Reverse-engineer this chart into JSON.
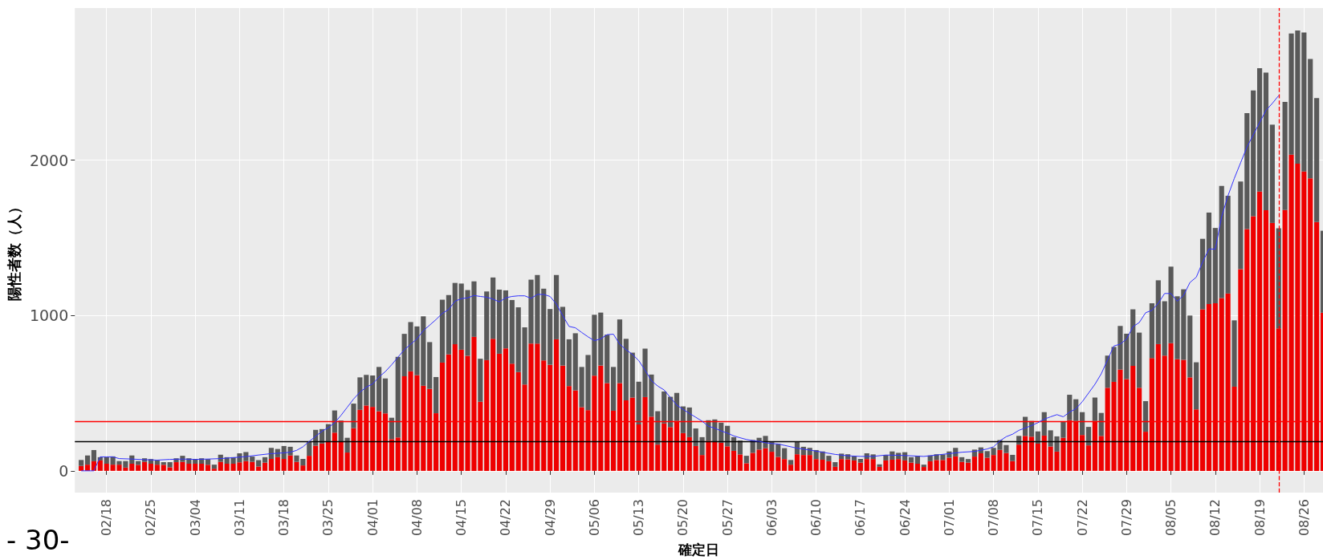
{
  "chart_data": {
    "type": "bar",
    "xlabel": "確定日",
    "ylabel": "陽性者数（人）",
    "annotations": [
      "- 30-"
    ],
    "stacked": true,
    "grid": true,
    "x": [
      "--02-14",
      "--02-15",
      "--02-16",
      "--02-17",
      "--02-18",
      "--02-19",
      "--02-20",
      "--02-21",
      "--02-22",
      "--02-23",
      "--02-24",
      "--02-25",
      "--02-26",
      "--02-27",
      "--02-28",
      "--03-01",
      "--03-02",
      "--03-03",
      "--03-04",
      "--03-05",
      "--03-06",
      "--03-07",
      "--03-08",
      "--03-09",
      "--03-10",
      "--03-11",
      "--03-12",
      "--03-13",
      "--03-14",
      "--03-15",
      "--03-16",
      "--03-17",
      "--03-18",
      "--03-19",
      "--03-20",
      "--03-21",
      "--03-22",
      "--03-23",
      "--03-24",
      "--03-25",
      "--03-26",
      "--03-27",
      "--03-28",
      "--03-29",
      "--03-30",
      "--03-31",
      "--04-01",
      "--04-02",
      "--04-03",
      "--04-04",
      "--04-05",
      "--04-06",
      "--04-07",
      "--04-08",
      "--04-09",
      "--04-10",
      "--04-11",
      "--04-12",
      "--04-13",
      "--04-14",
      "--04-15",
      "--04-16",
      "--04-17",
      "--04-18",
      "--04-19",
      "--04-20",
      "--04-21",
      "--04-22",
      "--04-23",
      "--04-24",
      "--04-25",
      "--04-26",
      "--04-27",
      "--04-28",
      "--04-29",
      "--04-30",
      "--05-01",
      "--05-02",
      "--05-03",
      "--05-04",
      "--05-05",
      "--05-06",
      "--05-07",
      "--05-08",
      "--05-09",
      "--05-10",
      "--05-11",
      "--05-12",
      "--05-13",
      "--05-14",
      "--05-15",
      "--05-16",
      "--05-17",
      "--05-18",
      "--05-19",
      "--05-20",
      "--05-21",
      "--05-22",
      "--05-23",
      "--05-24",
      "--05-25",
      "--05-26",
      "--05-27",
      "--05-28",
      "--05-29",
      "--05-30",
      "--05-31",
      "--06-01",
      "--06-02",
      "--06-03",
      "--06-04",
      "--06-05",
      "--06-06",
      "--06-07",
      "--06-08",
      "--06-09",
      "--06-10",
      "--06-11",
      "--06-12",
      "--06-13",
      "--06-14",
      "--06-15",
      "--06-16",
      "--06-17",
      "--06-18",
      "--06-19",
      "--06-20",
      "--06-21",
      "--06-22",
      "--06-23",
      "--06-24",
      "--06-25",
      "--06-26",
      "--06-27",
      "--06-28",
      "--06-29",
      "--06-30",
      "--07-01",
      "--07-02",
      "--07-03",
      "--07-04",
      "--07-05",
      "--07-06",
      "--07-07",
      "--07-08",
      "--07-09",
      "--07-10",
      "--07-11",
      "--07-12",
      "--07-13",
      "--07-14",
      "--07-15",
      "--07-16",
      "--07-17",
      "--07-18",
      "--07-19",
      "--07-20",
      "--07-21",
      "--07-22",
      "--07-23",
      "--07-24",
      "--07-25",
      "--07-26",
      "--07-27",
      "--07-28",
      "--07-29",
      "--07-30",
      "--07-31",
      "--08-01",
      "--08-02",
      "--08-03",
      "--08-04",
      "--08-05",
      "--08-06",
      "--08-07",
      "--08-08",
      "--08-09",
      "--08-10",
      "--08-11",
      "--08-12",
      "--08-13",
      "--08-14",
      "--08-15",
      "--08-16",
      "--08-17",
      "--08-18",
      "--08-19",
      "--08-20",
      "--08-21",
      "--08-22",
      "--08-23",
      "--08-24",
      "--08-25",
      "--08-26",
      "--08-27",
      "--08-28",
      "--08-29"
    ],
    "series": [
      {
        "color": "#ee0000",
        "values": [
          32,
          40,
          62,
          67,
          46,
          40,
          40,
          21,
          46,
          39,
          58,
          46,
          40,
          39,
          23,
          56,
          58,
          46,
          46,
          46,
          40,
          14,
          58,
          46,
          46,
          55,
          63,
          58,
          28,
          53,
          77,
          88,
          77,
          99,
          58,
          35,
          97,
          162,
          176,
          190,
          246,
          190,
          118,
          275,
          393,
          421,
          412,
          384,
          370,
          204,
          215,
          609,
          641,
          616,
          548,
          528,
          371,
          697,
          750,
          815,
          780,
          741,
          863,
          445,
          713,
          850,
          754,
          789,
          690,
          636,
          556,
          820,
          819,
          711,
          683,
          847,
          678,
          546,
          518,
          410,
          391,
          613,
          678,
          565,
          387,
          565,
          454,
          472,
          299,
          475,
          349,
          169,
          305,
          282,
          322,
          243,
          217,
          160,
          102,
          194,
          187,
          181,
          158,
          129,
          106,
          49,
          116,
          137,
          146,
          123,
          90,
          76,
          40,
          107,
          102,
          102,
          76,
          72,
          62,
          26,
          76,
          74,
          67,
          53,
          76,
          76,
          26,
          67,
          72,
          76,
          67,
          53,
          46,
          25,
          62,
          70,
          70,
          85,
          93,
          58,
          53,
          92,
          113,
          85,
          102,
          135,
          115,
          63,
          169,
          225,
          220,
          175,
          227,
          157,
          124,
          213,
          326,
          321,
          231,
          164,
          321,
          225,
          535,
          573,
          652,
          591,
          676,
          535,
          252,
          726,
          816,
          742,
          822,
          719,
          715,
          602,
          396,
          1040,
          1074,
          1079,
          1112,
          1142,
          542,
          1299,
          1557,
          1640,
          1798,
          1678,
          1596,
          917,
          1679,
          2036,
          1978,
          1928,
          1883,
          1602,
          1018
        ]
      },
      {
        "color": "#595959",
        "values": [
          38,
          59,
          72,
          21,
          42,
          53,
          23,
          42,
          53,
          24,
          23,
          30,
          27,
          17,
          33,
          25,
          39,
          35,
          30,
          35,
          36,
          26,
          46,
          42,
          42,
          58,
          58,
          34,
          41,
          35,
          71,
          53,
          83,
          56,
          41,
          42,
          93,
          102,
          93,
          111,
          143,
          134,
          95,
          158,
          209,
          197,
          202,
          285,
          225,
          138,
          519,
          273,
          317,
          314,
          447,
          301,
          233,
          405,
          382,
          395,
          426,
          423,
          357,
          277,
          442,
          395,
          413,
          373,
          410,
          417,
          368,
          411,
          442,
          462,
          359,
          414,
          378,
          301,
          368,
          259,
          355,
          392,
          341,
          312,
          282,
          410,
          396,
          289,
          275,
          312,
          271,
          215,
          206,
          195,
          180,
          172,
          191,
          113,
          115,
          132,
          144,
          129,
          132,
          88,
          89,
          48,
          83,
          76,
          79,
          62,
          83,
          70,
          30,
          80,
          53,
          46,
          58,
          53,
          35,
          30,
          35,
          33,
          26,
          24,
          37,
          30,
          16,
          35,
          53,
          40,
          53,
          35,
          51,
          15,
          37,
          37,
          36,
          40,
          55,
          30,
          23,
          45,
          38,
          42,
          46,
          63,
          51,
          40,
          56,
          123,
          101,
          79,
          151,
          104,
          98,
          102,
          164,
          140,
          147,
          119,
          151,
          148,
          207,
          225,
          281,
          292,
          364,
          355,
          197,
          353,
          411,
          350,
          493,
          405,
          454,
          398,
          303,
          454,
          589,
          485,
          722,
          629,
          427,
          564,
          746,
          809,
          795,
          886,
          633,
          645,
          696,
          780,
          858,
          894,
          769,
          798,
          528
        ]
      },
      {
        "type": "line",
        "color": "#3333ff",
        "x": [
          "--02-14",
          "--02-15",
          "--02-16",
          "--02-17",
          "--02-18",
          "--02-19",
          "--02-20",
          "--02-22",
          "--02-24",
          "--02-26",
          "--02-28",
          "--03-02",
          "--03-04",
          "--03-06",
          "--03-08",
          "--03-10",
          "--03-12",
          "--03-14",
          "--03-16",
          "--03-18",
          "--03-19",
          "--03-20",
          "--03-21",
          "--03-22",
          "--03-23",
          "--03-24",
          "--03-25",
          "--03-26",
          "--03-27",
          "--03-28",
          "--03-29",
          "--03-30",
          "--03-31",
          "--04-01",
          "--04-02",
          "--04-03",
          "--04-04",
          "--04-05",
          "--04-06",
          "--04-07",
          "--04-08",
          "--04-09",
          "--04-10",
          "--04-11",
          "--04-12",
          "--04-13",
          "--04-14",
          "--04-15",
          "--04-16",
          "--04-17",
          "--04-18",
          "--04-19",
          "--04-20",
          "--04-21",
          "--04-22",
          "--04-23",
          "--04-24",
          "--04-25",
          "--04-26",
          "--04-27",
          "--04-28",
          "--04-29",
          "--04-30",
          "--05-01",
          "--05-02",
          "--05-03",
          "--05-04",
          "--05-05",
          "--05-06",
          "--05-07",
          "--05-08",
          "--05-09",
          "--05-10",
          "--05-11",
          "--05-12",
          "--05-13",
          "--05-14",
          "--05-15",
          "--05-16",
          "--05-17",
          "--05-18",
          "--05-19",
          "--05-20",
          "--05-21",
          "--05-22",
          "--05-23",
          "--05-24",
          "--05-25",
          "--05-26",
          "--05-27",
          "--05-28",
          "--05-29",
          "--05-30",
          "--05-31",
          "--06-01",
          "--06-02",
          "--06-03",
          "--06-04",
          "--06-05",
          "--06-07",
          "--06-09",
          "--06-11",
          "--06-13",
          "--06-15",
          "--06-17",
          "--06-19",
          "--06-21",
          "--06-23",
          "--06-25",
          "--06-27",
          "--06-29",
          "--07-01",
          "--07-03",
          "--07-05",
          "--07-07",
          "--07-08",
          "--07-09",
          "--07-10",
          "--07-11",
          "--07-12",
          "--07-13",
          "--07-14",
          "--07-15",
          "--07-16",
          "--07-17",
          "--07-18",
          "--07-19",
          "--07-20",
          "--07-21",
          "--07-22",
          "--07-23",
          "--07-24",
          "--07-25",
          "--07-26",
          "--07-27",
          "--07-28",
          "--07-29",
          "--07-30",
          "--07-31",
          "--08-01",
          "--08-02",
          "--08-03",
          "--08-04",
          "--08-05",
          "--08-06",
          "--08-07",
          "--08-08",
          "--08-09",
          "--08-10",
          "--08-11",
          "--08-12",
          "--08-13",
          "--08-14",
          "--08-15",
          "--08-16",
          "--08-17",
          "--08-18",
          "--08-19",
          "--08-20",
          "--08-21",
          "--08-22"
        ],
        "values": [
          0,
          0,
          0,
          90,
          90,
          90,
          79,
          76,
          72,
          69,
          74,
          76,
          74,
          76,
          79,
          85,
          92,
          102,
          111,
          116,
          120,
          132,
          155,
          190,
          222,
          255,
          278,
          310,
          357,
          410,
          463,
          507,
          539,
          560,
          604,
          639,
          683,
          732,
          780,
          815,
          850,
          903,
          938,
          974,
          1014,
          1039,
          1092,
          1109,
          1114,
          1129,
          1123,
          1118,
          1106,
          1088,
          1114,
          1123,
          1127,
          1127,
          1111,
          1136,
          1136,
          1123,
          1074,
          1000,
          930,
          921,
          891,
          863,
          838,
          850,
          877,
          880,
          815,
          780,
          750,
          710,
          648,
          581,
          546,
          521,
          472,
          423,
          396,
          370,
          345,
          320,
          287,
          275,
          257,
          243,
          225,
          213,
          202,
          194,
          190,
          181,
          176,
          173,
          164,
          146,
          134,
          120,
          106,
          97,
          93,
          93,
          102,
          100,
          97,
          93,
          102,
          111,
          120,
          125,
          141,
          155,
          193,
          220,
          236,
          261,
          276,
          292,
          310,
          333,
          348,
          362,
          348,
          378,
          400,
          445,
          501,
          557,
          625,
          715,
          804,
          816,
          849,
          928,
          955,
          1018,
          1034,
          1079,
          1142,
          1142,
          1092,
          1130,
          1213,
          1247,
          1344,
          1429,
          1427,
          1636,
          1771,
          1883,
          1984,
          2085,
          2164,
          2243,
          2321,
          2366,
          2416
        ]
      }
    ],
    "xlim": [
      "--02-13",
      "--08-29"
    ],
    "xticks": [
      {
        "value": "--02-18",
        "label": "02/18"
      },
      {
        "value": "--02-25",
        "label": "02/25"
      },
      {
        "value": "--03-04",
        "label": "03/04"
      },
      {
        "value": "--03-11",
        "label": "03/11"
      },
      {
        "value": "--03-18",
        "label": "03/18"
      },
      {
        "value": "--03-25",
        "label": "03/25"
      },
      {
        "value": "--04-01",
        "label": "04/01"
      },
      {
        "value": "--04-08",
        "label": "04/08"
      },
      {
        "value": "--04-15",
        "label": "04/15"
      },
      {
        "value": "--04-22",
        "label": "04/22"
      },
      {
        "value": "--04-29",
        "label": "04/29"
      },
      {
        "value": "--05-06",
        "label": "05/06"
      },
      {
        "value": "--05-13",
        "label": "05/13"
      },
      {
        "value": "--05-20",
        "label": "05/20"
      },
      {
        "value": "--05-27",
        "label": "05/27"
      },
      {
        "value": "--06-03",
        "label": "06/03"
      },
      {
        "value": "--06-10",
        "label": "06/10"
      },
      {
        "value": "--06-17",
        "label": "06/17"
      },
      {
        "value": "--06-24",
        "label": "06/24"
      },
      {
        "value": "--07-01",
        "label": "07/01"
      },
      {
        "value": "--07-08",
        "label": "07/08"
      },
      {
        "value": "--07-15",
        "label": "07/15"
      },
      {
        "value": "--07-22",
        "label": "07/22"
      },
      {
        "value": "--07-29",
        "label": "07/29"
      },
      {
        "value": "--08-05",
        "label": "08/05"
      },
      {
        "value": "--08-12",
        "label": "08/12"
      },
      {
        "value": "--08-19",
        "label": "08/19"
      },
      {
        "value": "--08-26",
        "label": "08/26"
      }
    ],
    "ylim": [
      -140,
      2980
    ],
    "yticks": [
      0,
      1000,
      2000
    ],
    "ref_lines": [
      {
        "axis": "y",
        "value": 320,
        "color": "#ff0000",
        "line_style": "solid"
      },
      {
        "axis": "y",
        "value": 190,
        "color": "#000000",
        "line_style": "solid"
      },
      {
        "axis": "x",
        "value": "--08-22",
        "color": "#ff0000",
        "line_style": "dashed"
      }
    ]
  }
}
